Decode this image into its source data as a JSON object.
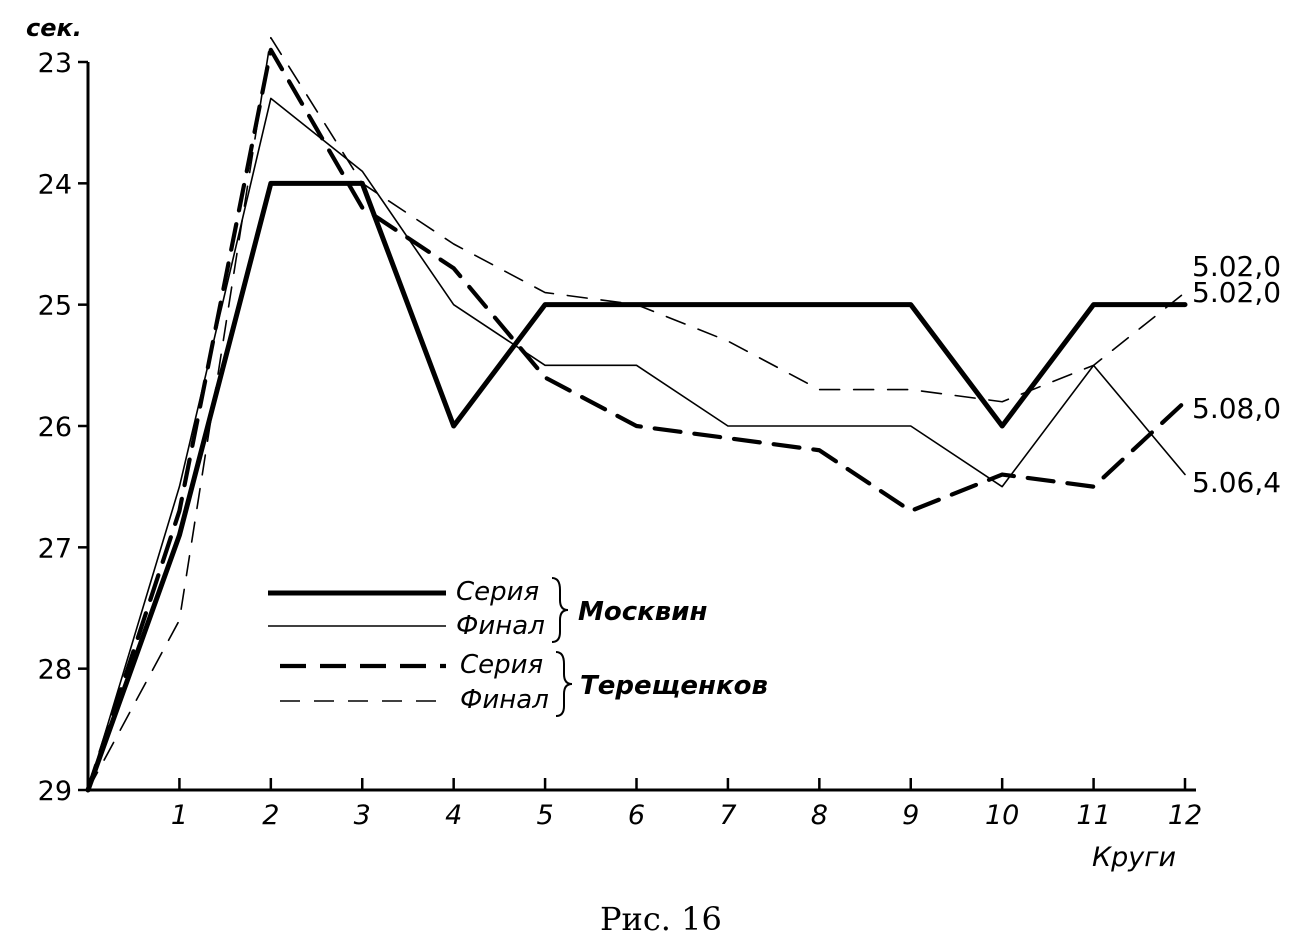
{
  "chart_data": {
    "type": "line",
    "ylabel": "сек.",
    "xlabel": "Круги",
    "caption": "Рис. 16",
    "y_inverted": true,
    "ylim": [
      23,
      29
    ],
    "xlim": [
      0,
      12
    ],
    "y_ticks": [
      23,
      24,
      25,
      26,
      27,
      28,
      29
    ],
    "x_ticks": [
      1,
      2,
      3,
      4,
      5,
      6,
      7,
      8,
      9,
      10,
      11,
      12
    ],
    "x": [
      0,
      1,
      2,
      3,
      4,
      5,
      6,
      7,
      8,
      9,
      10,
      11,
      12
    ],
    "series": [
      {
        "name": "Серия",
        "athlete": "Москвин",
        "style": "thick-solid",
        "values": [
          29,
          26.9,
          24.0,
          24.0,
          26.0,
          25.0,
          25.0,
          25.0,
          25.0,
          25.0,
          26.0,
          25.0,
          25.0
        ],
        "end_label": "5.02,0"
      },
      {
        "name": "Финал",
        "athlete": "Москвин",
        "style": "thin-solid",
        "values": [
          29,
          26.5,
          23.3,
          23.9,
          25.0,
          25.5,
          25.5,
          26.0,
          26.0,
          26.0,
          26.5,
          25.5,
          26.4
        ],
        "end_label": "5.06,4"
      },
      {
        "name": "Серия",
        "athlete": "Терещенков",
        "style": "thick-dashed",
        "values": [
          29,
          26.7,
          22.9,
          24.2,
          24.7,
          25.6,
          26.0,
          26.1,
          26.2,
          26.7,
          26.4,
          26.5,
          25.8
        ],
        "end_label": "5.08,0"
      },
      {
        "name": "Финал",
        "athlete": "Терещенков",
        "style": "thin-dashed",
        "values": [
          29,
          27.6,
          22.8,
          24.0,
          24.5,
          24.9,
          25.0,
          25.3,
          25.7,
          25.7,
          25.8,
          25.5,
          24.9
        ],
        "end_label": "5.02,0"
      }
    ],
    "legend": {
      "groups": [
        {
          "athlete": "Москвин",
          "entries": [
            "Серия",
            "Финал"
          ]
        },
        {
          "athlete": "Терещенков",
          "entries": [
            "Серия",
            "Финал"
          ]
        }
      ]
    }
  }
}
